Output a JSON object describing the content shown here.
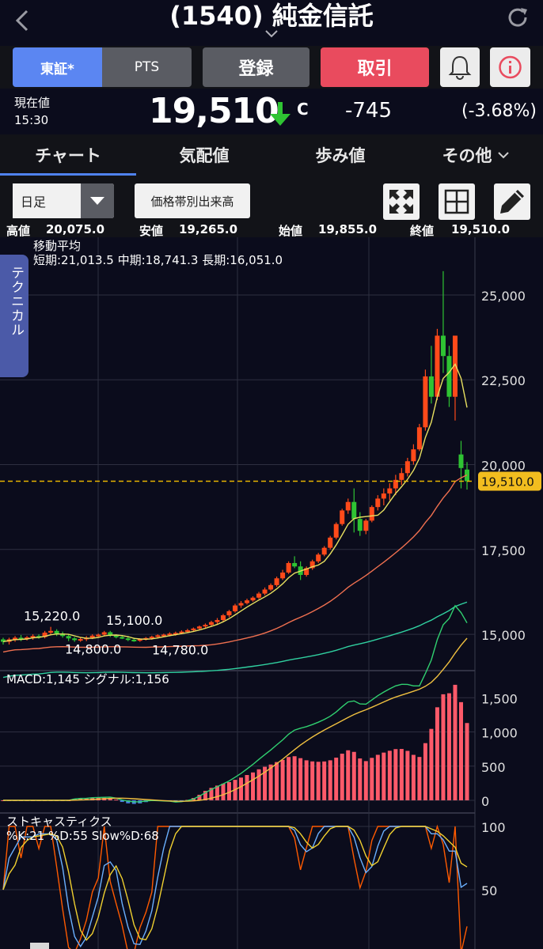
{
  "header": {
    "title": "(1540) 純金信託"
  },
  "market_tabs": {
    "tse": "東証*",
    "pts": "PTS"
  },
  "buttons": {
    "register": "登録",
    "trade": "取引"
  },
  "quote": {
    "label": "現在値",
    "time": "15:30",
    "price": "19,510",
    "flag": "C",
    "change": "-745",
    "change_pct": "(-3.68%)"
  },
  "tabs": {
    "chart": "チャート",
    "board": "気配値",
    "ticks": "歩み値",
    "other": "その他"
  },
  "toolbar": {
    "period": "日足",
    "band_volume": "価格帯別出来高"
  },
  "ohlc": {
    "high_label": "高値",
    "high": "20,075.0",
    "low_label": "安値",
    "low": "19,265.0",
    "open_label": "始値",
    "open": "19,855.0",
    "close_label": "終値",
    "close": "19,510.0"
  },
  "technical_tab": "テクニカル",
  "ma_legend": {
    "title": "移動平均",
    "values": "短期:21,013.5  中期:18,741.3  長期:16,051.0"
  },
  "macd_legend": {
    "macd": "MACD:1,145",
    "signal": "シグナル:1,156"
  },
  "stoch_legend": {
    "title": "ストキャスティクス",
    "values": "%K:21  %D:55  Slow%D:68"
  },
  "colors": {
    "up": "#2fc433",
    "down": "#ff4a1a",
    "accent": "#4f82ee",
    "trade": "#e94b5e"
  },
  "chart_data": {
    "type": "candlestick",
    "price_axis": {
      "ticks": [
        "25,000",
        "22,500",
        "20,000",
        "17,500",
        "15,000"
      ],
      "min": 14000,
      "max": 26700
    },
    "current_price_label": "19,510.0",
    "current_price": 19510,
    "annotations": [
      {
        "text": "15,220.0",
        "value": 15220
      },
      {
        "text": "15,100.0",
        "value": 15100
      },
      {
        "text": "14,800.0",
        "value": 14800
      },
      {
        "text": "14,780.0",
        "value": 14780
      }
    ],
    "candles": [
      [
        14850,
        14900,
        14700,
        14780
      ],
      [
        14780,
        14900,
        14700,
        14850
      ],
      [
        14850,
        14950,
        14780,
        14900
      ],
      [
        14900,
        14980,
        14800,
        14870
      ],
      [
        14870,
        14950,
        14820,
        14910
      ],
      [
        14910,
        15000,
        14840,
        14950
      ],
      [
        14950,
        15000,
        14870,
        14920
      ],
      [
        14920,
        15100,
        14880,
        15050
      ],
      [
        15050,
        15220,
        14980,
        15100
      ],
      [
        15100,
        15150,
        14950,
        15020
      ],
      [
        15020,
        15080,
        14900,
        14950
      ],
      [
        14950,
        15000,
        14800,
        14880
      ],
      [
        14880,
        14920,
        14780,
        14830
      ],
      [
        14830,
        14900,
        14780,
        14860
      ],
      [
        14860,
        14950,
        14800,
        14900
      ],
      [
        14900,
        15000,
        14860,
        14960
      ],
      [
        14960,
        15020,
        14900,
        14990
      ],
      [
        14990,
        15100,
        14940,
        15060
      ],
      [
        15060,
        15100,
        14920,
        14960
      ],
      [
        14960,
        15000,
        14880,
        14920
      ],
      [
        14920,
        14980,
        14860,
        14880
      ],
      [
        14880,
        14950,
        14800,
        14840
      ],
      [
        14840,
        14900,
        14780,
        14810
      ],
      [
        14810,
        14880,
        14780,
        14860
      ],
      [
        14860,
        14920,
        14820,
        14890
      ],
      [
        14890,
        14960,
        14840,
        14930
      ],
      [
        14930,
        15000,
        14880,
        14970
      ],
      [
        14970,
        15020,
        14920,
        14990
      ],
      [
        14990,
        15060,
        14940,
        15020
      ],
      [
        15020,
        15080,
        14960,
        15040
      ],
      [
        15040,
        15120,
        15000,
        15080
      ],
      [
        15080,
        15160,
        15040,
        15120
      ],
      [
        15120,
        15200,
        15080,
        15170
      ],
      [
        15170,
        15260,
        15120,
        15230
      ],
      [
        15230,
        15320,
        15180,
        15280
      ],
      [
        15280,
        15400,
        15240,
        15360
      ],
      [
        15360,
        15480,
        15300,
        15420
      ],
      [
        15420,
        15600,
        15380,
        15560
      ],
      [
        15560,
        15720,
        15500,
        15680
      ],
      [
        15680,
        15900,
        15640,
        15850
      ],
      [
        15850,
        15980,
        15780,
        15920
      ],
      [
        15920,
        16050,
        15880,
        16000
      ],
      [
        16000,
        16120,
        15960,
        16080
      ],
      [
        16080,
        16250,
        16040,
        16200
      ],
      [
        16200,
        16380,
        16150,
        16320
      ],
      [
        16320,
        16500,
        16280,
        16450
      ],
      [
        16450,
        16700,
        16400,
        16650
      ],
      [
        16650,
        16900,
        16600,
        16820
      ],
      [
        16820,
        17150,
        16780,
        17100
      ],
      [
        17100,
        17300,
        16950,
        17000
      ],
      [
        17000,
        17150,
        16600,
        16750
      ],
      [
        16750,
        17000,
        16700,
        16950
      ],
      [
        16950,
        17200,
        16900,
        17150
      ],
      [
        17150,
        17400,
        17100,
        17350
      ],
      [
        17350,
        17600,
        17300,
        17550
      ],
      [
        17550,
        17900,
        17500,
        17850
      ],
      [
        17850,
        18300,
        17800,
        18250
      ],
      [
        18250,
        18700,
        18200,
        18650
      ],
      [
        18650,
        19000,
        18550,
        18900
      ],
      [
        18900,
        19300,
        18000,
        18400
      ],
      [
        18400,
        18600,
        17900,
        18050
      ],
      [
        18050,
        18400,
        17950,
        18350
      ],
      [
        18350,
        18800,
        18300,
        18750
      ],
      [
        18750,
        19100,
        18650,
        19000
      ],
      [
        19000,
        19300,
        18800,
        19150
      ],
      [
        19150,
        19450,
        18950,
        19300
      ],
      [
        19300,
        19700,
        19100,
        19550
      ],
      [
        19550,
        19900,
        19400,
        19750
      ],
      [
        19750,
        20200,
        19650,
        20100
      ],
      [
        20100,
        20600,
        20000,
        20450
      ],
      [
        20450,
        21200,
        20400,
        21100
      ],
      [
        21100,
        22800,
        21000,
        22600
      ],
      [
        22600,
        23500,
        21800,
        22000
      ],
      [
        22000,
        24000,
        21900,
        23800
      ],
      [
        23800,
        25700,
        22700,
        23200
      ],
      [
        23200,
        23500,
        21700,
        22000
      ],
      [
        22000,
        23800,
        21300,
        23800
      ],
      [
        20300,
        20700,
        19300,
        19900
      ],
      [
        19855,
        20075,
        19265,
        19510
      ]
    ],
    "moving_averages": {
      "short": {
        "name": "短期",
        "last": 21013.5,
        "color": "#e8e060"
      },
      "mid": {
        "name": "中期",
        "last": 18741.3,
        "color": "#f07050"
      },
      "long": {
        "name": "長期",
        "last": 16051.0,
        "color": "#30d0a0"
      }
    },
    "macd": {
      "axis_ticks": [
        "1,500",
        "1,000",
        "500",
        "0"
      ],
      "min": -200,
      "max": 1700,
      "macd_color": "#30d070",
      "signal_color": "#f0c040",
      "hist_color": "#ff5a6a",
      "last_macd": 1145,
      "last_signal": 1156
    },
    "stochastic": {
      "axis_ticks": [
        "100",
        "50"
      ],
      "k_color": "#ff5a00",
      "d_color": "#6ab0ff",
      "slow_color": "#f0d030",
      "k": [
        21
      ],
      "d": [
        55
      ],
      "slow_d": [
        68
      ]
    }
  }
}
